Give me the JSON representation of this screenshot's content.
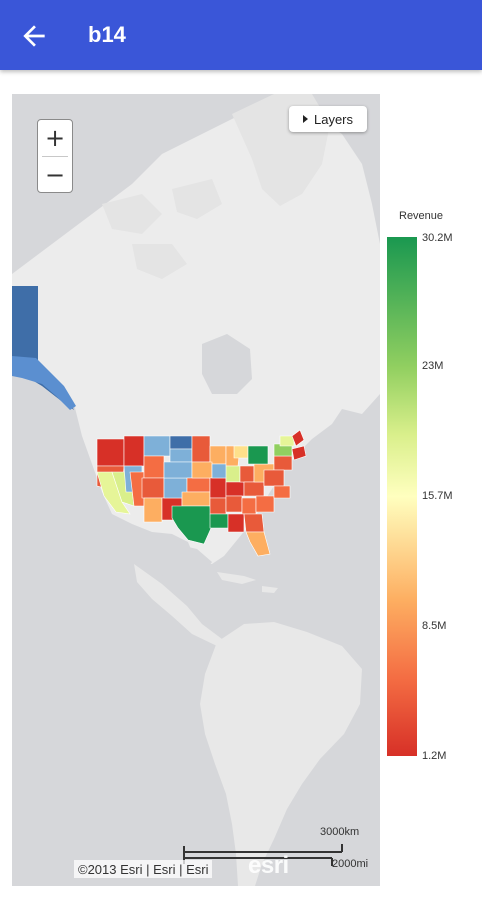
{
  "app_bar": {
    "title": "b14",
    "color": "#3a56d8"
  },
  "map": {
    "zoom_in_label": "+",
    "zoom_out_label": "−",
    "layers_label": "Layers",
    "attribution": "©2013 Esri | Esri | Esri",
    "logo_text": "esri",
    "scale_km": "3000km",
    "scale_mi": "2000mi"
  },
  "legend": {
    "title": "Revenue",
    "labels": [
      "30.2M",
      "23M",
      "15.7M",
      "8.5M",
      "1.2M"
    ],
    "colors": {
      "high": "#1a9850",
      "mid": "#ffffbf",
      "low": "#d73027"
    }
  }
}
